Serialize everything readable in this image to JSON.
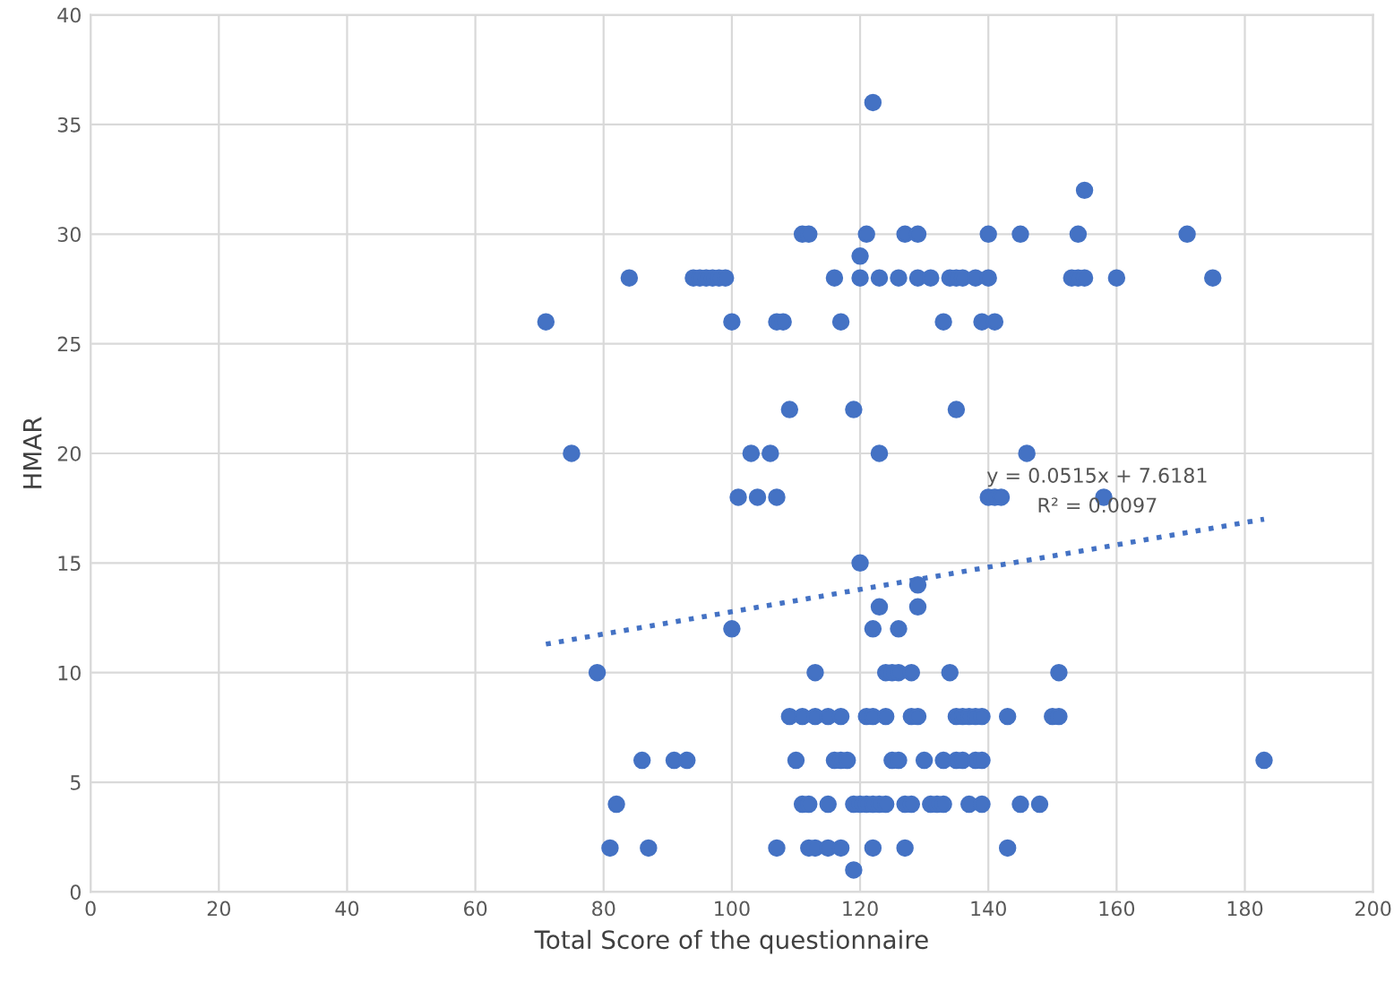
{
  "chart_data": {
    "type": "scatter",
    "xlabel": "Total Score of the questionnaire",
    "ylabel": "HMAR",
    "series": [
      {
        "color": "#4472c4",
        "marker": "circle",
        "x": [
          122,
          155,
          111,
          112,
          121,
          127,
          129,
          140,
          145,
          154,
          171,
          120,
          84,
          94,
          95,
          96,
          97,
          98,
          99,
          116,
          120,
          123,
          126,
          129,
          131,
          134,
          135,
          136,
          138,
          140,
          153,
          154,
          155,
          160,
          175,
          71,
          100,
          107,
          108,
          117,
          133,
          139,
          141,
          109,
          119,
          135,
          75,
          103,
          106,
          123,
          146,
          101,
          104,
          107,
          140,
          141,
          142,
          158,
          120,
          129,
          123,
          129,
          100,
          122,
          126,
          79,
          113,
          124,
          125,
          126,
          128,
          134,
          151,
          109,
          111,
          113,
          115,
          117,
          121,
          122,
          124,
          128,
          129,
          135,
          136,
          137,
          138,
          139,
          143,
          150,
          151,
          86,
          91,
          93,
          110,
          116,
          117,
          118,
          125,
          126,
          130,
          133,
          135,
          136,
          138,
          139,
          183,
          82,
          111,
          112,
          115,
          119,
          120,
          121,
          122,
          123,
          124,
          127,
          128,
          131,
          132,
          133,
          137,
          139,
          145,
          148,
          81,
          87,
          107,
          112,
          113,
          115,
          117,
          122,
          127,
          143,
          119
        ],
        "values": [
          36,
          32,
          30,
          30,
          30,
          30,
          30,
          30,
          30,
          30,
          30,
          29,
          28,
          28,
          28,
          28,
          28,
          28,
          28,
          28,
          28,
          28,
          28,
          28,
          28,
          28,
          28,
          28,
          28,
          28,
          28,
          28,
          28,
          28,
          28,
          26,
          26,
          26,
          26,
          26,
          26,
          26,
          26,
          22,
          22,
          22,
          20,
          20,
          20,
          20,
          20,
          18,
          18,
          18,
          18,
          18,
          18,
          18,
          15,
          14,
          13,
          13,
          12,
          12,
          12,
          10,
          10,
          10,
          10,
          10,
          10,
          10,
          10,
          8,
          8,
          8,
          8,
          8,
          8,
          8,
          8,
          8,
          8,
          8,
          8,
          8,
          8,
          8,
          8,
          8,
          8,
          6,
          6,
          6,
          6,
          6,
          6,
          6,
          6,
          6,
          6,
          6,
          6,
          6,
          6,
          6,
          6,
          4,
          4,
          4,
          4,
          4,
          4,
          4,
          4,
          4,
          4,
          4,
          4,
          4,
          4,
          4,
          4,
          4,
          4,
          4,
          2,
          2,
          2,
          2,
          2,
          2,
          2,
          2,
          2,
          2,
          1
        ]
      },
      {
        "type": "line",
        "color": "#4472c4",
        "line_style": "dotted",
        "marker": "none",
        "x": [
          71,
          183
        ],
        "values": [
          11.3,
          17.0
        ]
      }
    ],
    "annotations": [
      "y = 0.0515x + 7.6181",
      "R² = 0.0097"
    ],
    "xlim": [
      0,
      200
    ],
    "xticks": [
      0,
      20,
      40,
      60,
      80,
      100,
      120,
      140,
      160,
      180,
      200
    ],
    "ylim": [
      0,
      40
    ],
    "yticks": [
      0,
      5,
      10,
      15,
      20,
      25,
      30,
      35,
      40
    ],
    "grid": true,
    "legend": false
  }
}
